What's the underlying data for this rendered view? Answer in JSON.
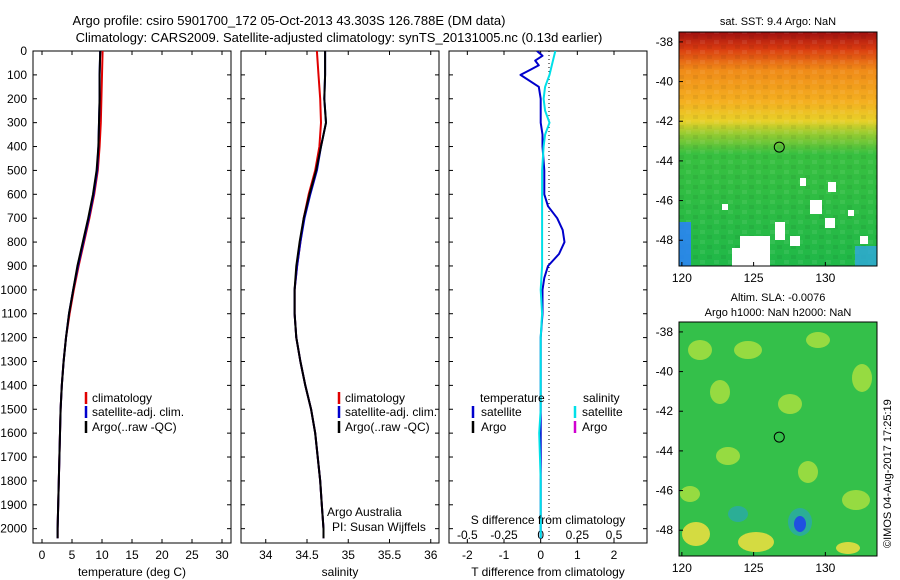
{
  "header": {
    "line1": "Argo profile: csiro 5901700_172 05-Oct-2013 43.303S 126.788E (DM data)",
    "line2": "Climatology: CARS2009. Satellite-adjusted climatology: synTS_20131005.nc (0.13d earlier)"
  },
  "colors": {
    "climatology": "#e00000",
    "satellite": "#0000cc",
    "argo": "#000000",
    "sal_satellite": "#00e0e8",
    "sal_argo": "#d000d0"
  },
  "chart_data": [
    {
      "type": "line",
      "id": "temperature",
      "xlabel": "temperature (deg C)",
      "ylabel": "",
      "xlim": [
        -1.5,
        31.5
      ],
      "ylim": [
        2060,
        0
      ],
      "xticks": [
        "0",
        "5",
        "10",
        "15",
        "20",
        "25",
        "30"
      ],
      "xtick_values": [
        0,
        5,
        10,
        15,
        20,
        25,
        30
      ],
      "yticks": [
        "0",
        "100",
        "200",
        "300",
        "400",
        "500",
        "600",
        "700",
        "800",
        "900",
        "1000",
        "1100",
        "1200",
        "1300",
        "1400",
        "1500",
        "1600",
        "1700",
        "1800",
        "1900",
        "2000"
      ],
      "ytick_values": [
        0,
        100,
        200,
        300,
        400,
        500,
        600,
        700,
        800,
        900,
        1000,
        1100,
        1200,
        1300,
        1400,
        1500,
        1600,
        1700,
        1800,
        1900,
        2000
      ],
      "legend": [
        "climatology",
        "satellite-adj. clim.",
        "Argo(..raw -QC)"
      ],
      "series": [
        {
          "name": "climatology",
          "depth": [
            0,
            100,
            200,
            300,
            400,
            500,
            600,
            700,
            800,
            900,
            1000,
            1100,
            1200,
            1300,
            1400,
            1500,
            1600,
            1700,
            1800,
            1900,
            2000,
            2040
          ],
          "values": [
            10.1,
            10.0,
            9.9,
            9.8,
            9.6,
            9.3,
            8.7,
            7.9,
            7.0,
            6.1,
            5.3,
            4.6,
            4.0,
            3.6,
            3.3,
            3.1,
            3.0,
            2.9,
            2.8,
            2.7,
            2.6,
            2.6
          ]
        },
        {
          "name": "satellite",
          "depth": [
            0,
            100,
            200,
            300,
            400,
            500,
            600,
            700,
            800,
            900,
            1000,
            1100,
            1200,
            1300,
            1400,
            1500,
            1600,
            1700,
            1800,
            1900,
            2000,
            2040
          ],
          "values": [
            9.7,
            9.6,
            9.6,
            9.5,
            9.4,
            9.2,
            8.6,
            7.8,
            6.9,
            6.0,
            5.2,
            4.5,
            4.0,
            3.6,
            3.3,
            3.1,
            3.0,
            2.9,
            2.8,
            2.7,
            2.6,
            2.6
          ]
        },
        {
          "name": "argo",
          "depth": [
            0,
            100,
            200,
            300,
            400,
            500,
            600,
            700,
            800,
            900,
            1000,
            1100,
            1200,
            1300,
            1400,
            1500,
            1600,
            1700,
            1800,
            1900,
            2000,
            2040
          ],
          "values": [
            9.7,
            9.6,
            9.6,
            9.5,
            9.4,
            9.1,
            8.5,
            7.7,
            6.8,
            5.9,
            5.2,
            4.5,
            4.0,
            3.6,
            3.3,
            3.1,
            3.0,
            2.9,
            2.8,
            2.7,
            2.6,
            2.6
          ]
        }
      ]
    },
    {
      "type": "line",
      "id": "salinity",
      "xlabel": "salinity",
      "ylabel": "",
      "xlim": [
        33.7,
        36.1
      ],
      "ylim": [
        2060,
        0
      ],
      "xticks": [
        "34",
        "34.5",
        "35",
        "35.5",
        "36"
      ],
      "xtick_values": [
        34,
        34.5,
        35,
        35.5,
        36
      ],
      "legend": [
        "climatology",
        "satellite-adj. clim.",
        "Argo(..raw -QC)"
      ],
      "annotation": [
        "Argo Australia",
        "PI: Susan Wijffels"
      ],
      "series": [
        {
          "name": "climatology",
          "depth": [
            0,
            100,
            200,
            300,
            400,
            500,
            600,
            700,
            800,
            900,
            1000,
            1100,
            1200,
            1300,
            1400,
            1500,
            1600,
            1700,
            1800,
            1900,
            2000,
            2040
          ],
          "values": [
            34.62,
            34.64,
            34.66,
            34.67,
            34.65,
            34.6,
            34.52,
            34.46,
            34.42,
            34.38,
            34.35,
            34.35,
            34.37,
            34.42,
            34.48,
            34.55,
            34.6,
            34.63,
            34.66,
            34.68,
            34.7,
            34.7
          ]
        },
        {
          "name": "satellite",
          "depth": [
            0,
            100,
            200,
            300,
            400,
            500,
            600,
            700,
            800,
            900,
            1000,
            1100,
            1200,
            1300,
            1400,
            1500,
            1600,
            1700,
            1800,
            1900,
            2000,
            2040
          ],
          "values": [
            34.72,
            34.72,
            34.71,
            34.73,
            34.67,
            34.62,
            34.54,
            34.47,
            34.42,
            34.38,
            34.35,
            34.35,
            34.37,
            34.42,
            34.48,
            34.55,
            34.6,
            34.63,
            34.66,
            34.68,
            34.7,
            34.7
          ]
        },
        {
          "name": "argo",
          "depth": [
            0,
            100,
            200,
            300,
            400,
            500,
            600,
            700,
            800,
            900,
            1000,
            1100,
            1200,
            1300,
            1400,
            1500,
            1600,
            1700,
            1800,
            1900,
            2000,
            2040
          ],
          "values": [
            34.72,
            34.72,
            34.71,
            34.73,
            34.67,
            34.61,
            34.53,
            34.46,
            34.41,
            34.37,
            34.35,
            34.35,
            34.37,
            34.42,
            34.48,
            34.55,
            34.6,
            34.63,
            34.66,
            34.68,
            34.7,
            34.7
          ]
        }
      ]
    },
    {
      "type": "line",
      "id": "difference",
      "xlabel": "T difference from climatology",
      "xlabel2": "S difference from climatology",
      "xlim": [
        -2.5,
        2.9
      ],
      "ylim": [
        2060,
        0
      ],
      "xticks": [
        "-2",
        "-1",
        "0",
        "1",
        "2"
      ],
      "xtick_values": [
        -2,
        -1,
        0,
        1,
        2
      ],
      "xticks_s": [
        "-0.5",
        "-0.25",
        "0",
        "0.25",
        "0.5"
      ],
      "xtick_s_values": [
        -0.5,
        -0.25,
        0,
        0.25,
        0.5
      ],
      "s_scale": 4,
      "legend_title_t": "temperature",
      "legend_title_s": "salinity",
      "legend_t": [
        "satellite",
        "Argo"
      ],
      "legend_s": [
        "satellite",
        "Argo"
      ],
      "series": [
        {
          "name": "T satellite",
          "depth": [
            0,
            20,
            40,
            60,
            80,
            100,
            150,
            200,
            250,
            300,
            350,
            400,
            500,
            600,
            650,
            700,
            750,
            800,
            850,
            900,
            950,
            1000,
            1100,
            1200,
            1400,
            1600,
            1800,
            2000,
            2040
          ],
          "values": [
            -0.1,
            0.05,
            -0.15,
            -0.05,
            -0.3,
            -0.55,
            -0.05,
            0.0,
            0.0,
            0.0,
            0.05,
            0.05,
            0.1,
            0.1,
            0.2,
            0.45,
            0.6,
            0.65,
            0.5,
            0.2,
            0.1,
            0.05,
            0.05,
            0.0,
            0.0,
            0.0,
            0.0,
            0.0,
            0.0
          ]
        },
        {
          "name": "S satellite",
          "depth": [
            0,
            50,
            100,
            150,
            200,
            250,
            300,
            350,
            400,
            500,
            600,
            700,
            800,
            900,
            1000,
            1100,
            1200,
            1300,
            1400,
            1500,
            1600,
            1800,
            2000,
            2040
          ],
          "values": [
            0.1,
            0.08,
            0.06,
            0.03,
            0.02,
            0.03,
            0.06,
            0.03,
            0.02,
            0.01,
            0.01,
            0.01,
            0.01,
            0.01,
            0.0,
            0.01,
            0.0,
            0.0,
            0.0,
            0.0,
            -0.01,
            0.0,
            0.0,
            0.0
          ]
        }
      ]
    }
  ],
  "sst_map": {
    "title": "sat. SST: 9.4 Argo: NaN",
    "yticks": [
      "-38",
      "-40",
      "-42",
      "-44",
      "-46",
      "-48"
    ],
    "ytick_values": [
      -38,
      -40,
      -42,
      -44,
      -46,
      -48
    ],
    "xticks": [
      "120",
      "125",
      "130"
    ],
    "xtick_values": [
      120,
      125,
      130
    ],
    "lon_range": [
      119.8,
      133.6
    ],
    "lat_range": [
      -37.5,
      -49.3
    ],
    "marker": {
      "lon": 126.788,
      "lat": -43.303
    }
  },
  "sla_map": {
    "title1": "Altim. SLA: -0.0076",
    "title2": "Argo h1000: NaN h2000: NaN",
    "yticks": [
      "-38",
      "-40",
      "-42",
      "-44",
      "-46",
      "-48"
    ],
    "ytick_values": [
      -38,
      -40,
      -42,
      -44,
      -46,
      -48
    ],
    "xticks": [
      "120",
      "125",
      "130"
    ],
    "xtick_values": [
      120,
      125,
      130
    ],
    "lon_range": [
      119.8,
      133.6
    ],
    "lat_range": [
      -37.5,
      -49.3
    ],
    "marker": {
      "lon": 126.788,
      "lat": -43.303
    }
  },
  "watermark": "©IMOS 04-Aug-2017 17:25:19"
}
